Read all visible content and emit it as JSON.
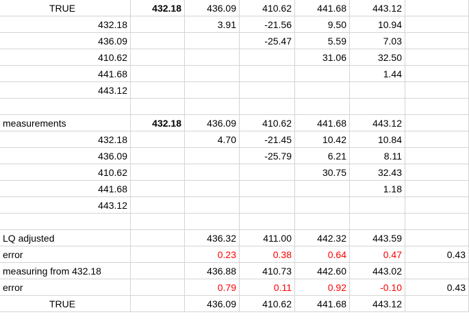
{
  "sheet": {
    "rows": [
      [
        {
          "t": "TRUE",
          "a": "c"
        },
        {
          "t": "432.18",
          "b": true
        },
        {
          "t": "436.09"
        },
        {
          "t": "410.62"
        },
        {
          "t": "441.68"
        },
        {
          "t": "443.12"
        },
        {
          "t": ""
        }
      ],
      [
        {
          "t": "432.18"
        },
        {
          "t": ""
        },
        {
          "t": "3.91"
        },
        {
          "t": "-21.56"
        },
        {
          "t": "9.50"
        },
        {
          "t": "10.94"
        },
        {
          "t": ""
        }
      ],
      [
        {
          "t": "436.09"
        },
        {
          "t": ""
        },
        {
          "t": ""
        },
        {
          "t": "-25.47"
        },
        {
          "t": "5.59"
        },
        {
          "t": "7.03"
        },
        {
          "t": ""
        }
      ],
      [
        {
          "t": "410.62"
        },
        {
          "t": ""
        },
        {
          "t": ""
        },
        {
          "t": ""
        },
        {
          "t": "31.06"
        },
        {
          "t": "32.50"
        },
        {
          "t": ""
        }
      ],
      [
        {
          "t": "441.68"
        },
        {
          "t": ""
        },
        {
          "t": ""
        },
        {
          "t": ""
        },
        {
          "t": ""
        },
        {
          "t": "1.44"
        },
        {
          "t": ""
        }
      ],
      [
        {
          "t": "443.12"
        },
        {
          "t": ""
        },
        {
          "t": ""
        },
        {
          "t": ""
        },
        {
          "t": ""
        },
        {
          "t": ""
        },
        {
          "t": ""
        }
      ],
      [
        {
          "t": ""
        },
        {
          "t": ""
        },
        {
          "t": ""
        },
        {
          "t": ""
        },
        {
          "t": ""
        },
        {
          "t": ""
        },
        {
          "t": ""
        }
      ],
      [
        {
          "t": "measurements",
          "a": "l"
        },
        {
          "t": "432.18",
          "b": true
        },
        {
          "t": "436.09"
        },
        {
          "t": "410.62"
        },
        {
          "t": "441.68"
        },
        {
          "t": "443.12"
        },
        {
          "t": ""
        }
      ],
      [
        {
          "t": "432.18"
        },
        {
          "t": ""
        },
        {
          "t": "4.70"
        },
        {
          "t": "-21.45"
        },
        {
          "t": "10.42"
        },
        {
          "t": "10.84"
        },
        {
          "t": ""
        }
      ],
      [
        {
          "t": "436.09"
        },
        {
          "t": ""
        },
        {
          "t": ""
        },
        {
          "t": "-25.79"
        },
        {
          "t": "6.21"
        },
        {
          "t": "8.11"
        },
        {
          "t": ""
        }
      ],
      [
        {
          "t": "410.62"
        },
        {
          "t": ""
        },
        {
          "t": ""
        },
        {
          "t": ""
        },
        {
          "t": "30.75"
        },
        {
          "t": "32.43"
        },
        {
          "t": ""
        }
      ],
      [
        {
          "t": "441.68"
        },
        {
          "t": ""
        },
        {
          "t": ""
        },
        {
          "t": ""
        },
        {
          "t": ""
        },
        {
          "t": "1.18"
        },
        {
          "t": ""
        }
      ],
      [
        {
          "t": "443.12"
        },
        {
          "t": ""
        },
        {
          "t": ""
        },
        {
          "t": ""
        },
        {
          "t": ""
        },
        {
          "t": ""
        },
        {
          "t": ""
        }
      ],
      [
        {
          "t": ""
        },
        {
          "t": ""
        },
        {
          "t": ""
        },
        {
          "t": ""
        },
        {
          "t": ""
        },
        {
          "t": ""
        },
        {
          "t": ""
        }
      ],
      [
        {
          "t": "LQ adjusted",
          "a": "l"
        },
        {
          "t": ""
        },
        {
          "t": "436.32"
        },
        {
          "t": "411.00"
        },
        {
          "t": "442.32"
        },
        {
          "t": "443.59"
        },
        {
          "t": ""
        }
      ],
      [
        {
          "t": "error",
          "a": "l"
        },
        {
          "t": ""
        },
        {
          "t": "0.23",
          "red": true
        },
        {
          "t": "0.38",
          "red": true
        },
        {
          "t": "0.64",
          "red": true
        },
        {
          "t": "0.47",
          "red": true
        },
        {
          "t": "0.43"
        }
      ],
      [
        {
          "t": "measuring from 432.18",
          "a": "l"
        },
        {
          "t": ""
        },
        {
          "t": "436.88"
        },
        {
          "t": "410.73"
        },
        {
          "t": "442.60"
        },
        {
          "t": "443.02"
        },
        {
          "t": ""
        }
      ],
      [
        {
          "t": "error",
          "a": "l"
        },
        {
          "t": ""
        },
        {
          "t": "0.79",
          "red": true
        },
        {
          "t": "0.11",
          "red": true
        },
        {
          "t": "0.92",
          "red": true
        },
        {
          "t": "-0.10",
          "red": true
        },
        {
          "t": "0.43"
        }
      ],
      [
        {
          "t": "TRUE",
          "a": "c"
        },
        {
          "t": ""
        },
        {
          "t": "436.09"
        },
        {
          "t": "410.62"
        },
        {
          "t": "441.68"
        },
        {
          "t": "443.12"
        },
        {
          "t": ""
        }
      ]
    ]
  },
  "colors": {
    "error_text": "#ff0000",
    "gridline": "#d4d4d4"
  }
}
